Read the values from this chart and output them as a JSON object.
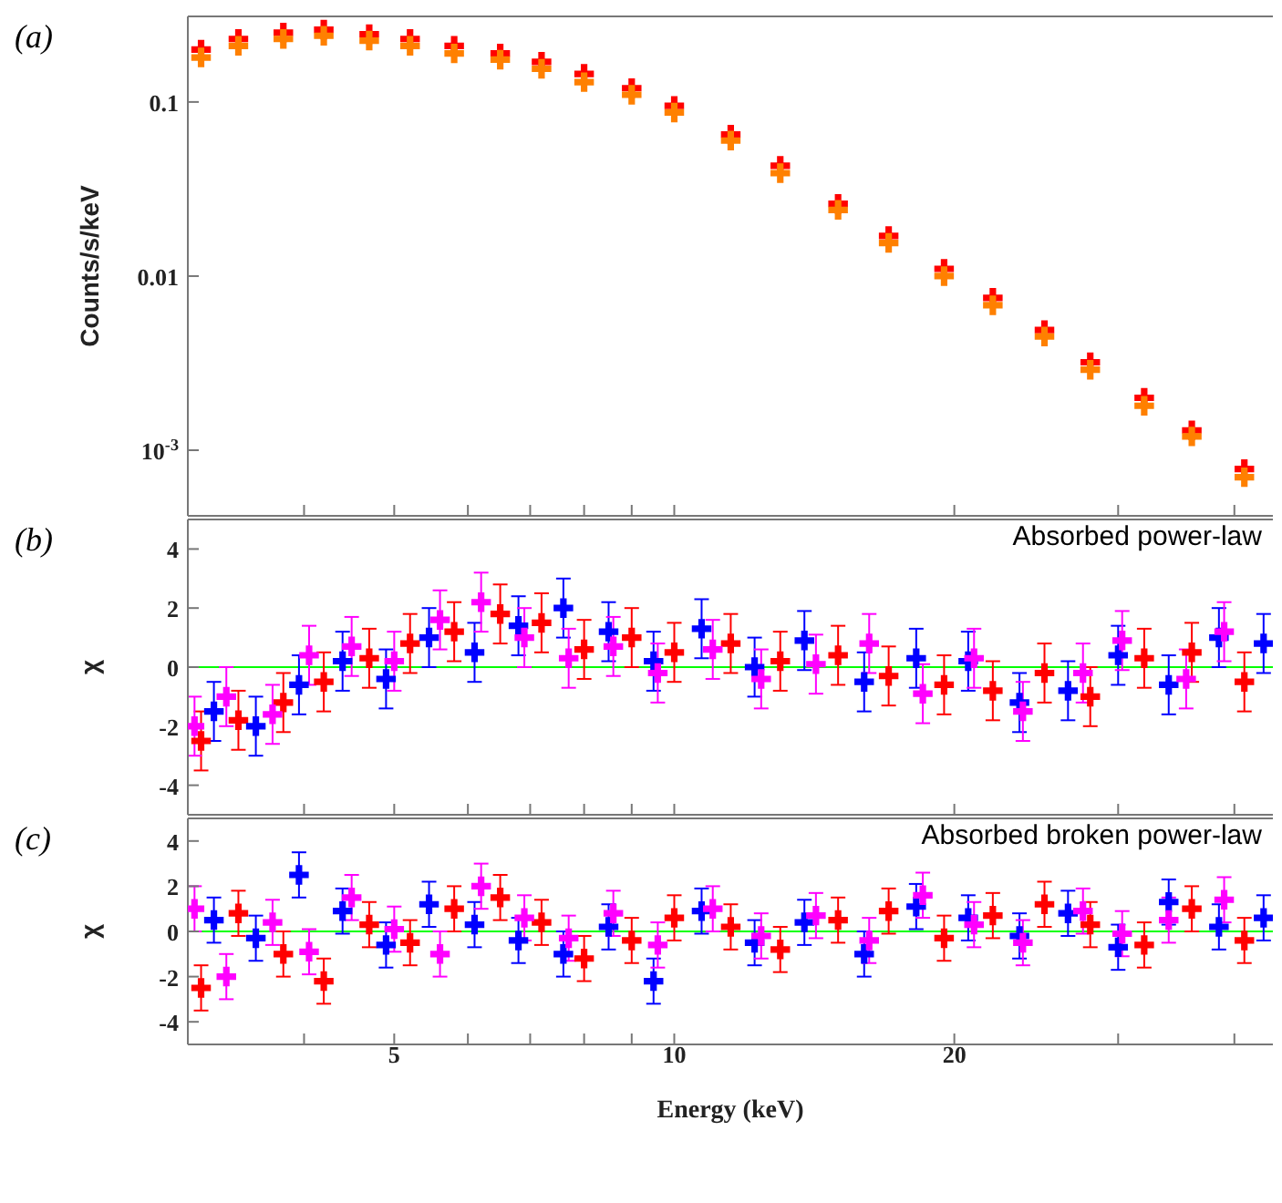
{
  "chart_data": [
    {
      "type": "scatter",
      "xlim": [
        3,
        44
      ],
      "ylim": [
        0.00042,
        0.31
      ],
      "log": "xy",
      "xticks": [
        {
          "value": 4,
          "label": null
        },
        {
          "value": 5,
          "label": null
        },
        {
          "value": 6,
          "label": null
        },
        {
          "value": 7,
          "label": null
        },
        {
          "value": 8,
          "label": null
        },
        {
          "value": 9,
          "label": null
        },
        {
          "value": 10,
          "label": null
        },
        {
          "value": 20,
          "label": null
        },
        {
          "value": 30,
          "label": null
        },
        {
          "value": 40,
          "label": null
        }
      ],
      "yticks": [
        {
          "value": 0.001,
          "label": "10$^{-3}$"
        },
        0.01,
        0.1
      ],
      "tick_labels": "y",
      "ylabel": "Counts/s/keV",
      "annotations": [
        "(a)"
      ],
      "marker": "cross",
      "legend": false,
      "grid": false,
      "x": [
        3.1,
        3.4,
        3.8,
        4.2,
        4.7,
        5.2,
        5.8,
        6.5,
        7.2,
        8,
        9,
        10,
        11.5,
        13,
        15,
        17,
        19.5,
        22,
        25,
        28,
        32,
        36,
        41
      ],
      "series": [
        {
          "color": "#ff0000",
          "values": [
            0.2,
            0.23,
            0.25,
            0.26,
            0.245,
            0.23,
            0.21,
            0.19,
            0.17,
            0.145,
            0.12,
            0.095,
            0.065,
            0.043,
            0.026,
            0.017,
            0.011,
            0.0075,
            0.0049,
            0.0032,
            0.002,
            0.0013,
            0.00078
          ]
        },
        {
          "color": "#ff8000",
          "values": [
            0.18,
            0.21,
            0.23,
            0.24,
            0.225,
            0.21,
            0.19,
            0.175,
            0.155,
            0.13,
            0.11,
            0.087,
            0.06,
            0.039,
            0.024,
            0.0155,
            0.01,
            0.0068,
            0.0045,
            0.0029,
            0.0018,
            0.0012,
            0.0007
          ]
        }
      ]
    },
    {
      "type": "scatter",
      "xlim": [
        3,
        44
      ],
      "ylim": [
        -5,
        5
      ],
      "log": "x",
      "xticks": [
        {
          "value": 4,
          "label": null
        },
        {
          "value": 5,
          "label": null
        },
        {
          "value": 6,
          "label": null
        },
        {
          "value": 7,
          "label": null
        },
        {
          "value": 8,
          "label": null
        },
        {
          "value": 9,
          "label": null
        },
        {
          "value": 10,
          "label": null
        },
        {
          "value": 20,
          "label": null
        },
        {
          "value": 30,
          "label": null
        },
        {
          "value": 40,
          "label": null
        }
      ],
      "yticks": [
        -4,
        -2,
        0,
        2,
        4
      ],
      "tick_labels": "y",
      "ylabel": "χ",
      "annotations": [
        "(b)",
        "Absorbed power-law"
      ],
      "marker": "cross",
      "legend": false,
      "grid": false,
      "ref_lines": [
        {
          "axis": "y",
          "value": 0,
          "color": "#00ff00"
        }
      ],
      "x": [
        3.1,
        3.4,
        3.8,
        4.2,
        4.7,
        5.2,
        5.8,
        6.5,
        7.2,
        8,
        9,
        10,
        11.5,
        13,
        15,
        17,
        19.5,
        22,
        25,
        28,
        32,
        36,
        41
      ],
      "series": [
        {
          "color": "#ff0000",
          "values": [
            -2.5,
            -1.8,
            -1.2,
            -0.5,
            0.3,
            0.8,
            1.2,
            1.8,
            1.5,
            0.6,
            1.0,
            0.5,
            0.8,
            0.2,
            0.4,
            -0.3,
            -0.6,
            -0.8,
            -0.2,
            -1.0,
            0.3,
            0.5,
            -0.5
          ],
          "errors": [
            1,
            1,
            1,
            1,
            1,
            1,
            1,
            1,
            1,
            1,
            1,
            1,
            1,
            1,
            1,
            1,
            1,
            1,
            1,
            1,
            1,
            1,
            1
          ]
        },
        {
          "color": "#0000ff",
          "x": [
            3.2,
            3.55,
            3.95,
            4.4,
            4.9,
            5.45,
            6.1,
            6.8,
            7.6,
            8.5,
            9.5,
            10.7,
            12.2,
            13.8,
            16,
            18.2,
            20.7,
            23.5,
            26.5,
            30,
            34,
            38.5,
            43
          ],
          "values": [
            -1.5,
            -2.0,
            -0.6,
            0.2,
            -0.4,
            1.0,
            0.5,
            1.4,
            2.0,
            1.2,
            0.2,
            1.3,
            0.0,
            0.9,
            -0.5,
            0.3,
            0.2,
            -1.2,
            -0.8,
            0.4,
            -0.6,
            1.0,
            0.8
          ],
          "errors": [
            1,
            1,
            1,
            1,
            1,
            1,
            1,
            1,
            1,
            1,
            1,
            1,
            1,
            1,
            1,
            1,
            1,
            1,
            1,
            1,
            1,
            1,
            1
          ]
        },
        {
          "color": "#ff00ff",
          "x": [
            3.05,
            3.3,
            3.7,
            4.05,
            4.5,
            5,
            5.6,
            6.2,
            6.9,
            7.7,
            8.6,
            9.6,
            11,
            12.4,
            14.2,
            16.2,
            18.5,
            21,
            23.7,
            27.5,
            30.3,
            35.5,
            39
          ],
          "values": [
            -2.0,
            -1.0,
            -1.6,
            0.4,
            0.7,
            0.2,
            1.6,
            2.2,
            1.0,
            0.3,
            0.7,
            -0.2,
            0.6,
            -0.4,
            0.1,
            0.8,
            -0.9,
            0.3,
            -1.5,
            -0.2,
            0.9,
            -0.4,
            1.2
          ],
          "errors": [
            1,
            1,
            1,
            1,
            1,
            1,
            1,
            1,
            1,
            1,
            1,
            1,
            1,
            1,
            1,
            1,
            1,
            1,
            1,
            1,
            1,
            1,
            1
          ]
        }
      ]
    },
    {
      "type": "scatter",
      "xlim": [
        3,
        44
      ],
      "ylim": [
        -5,
        5
      ],
      "log": "x",
      "xticks": [
        {
          "value": 4,
          "label": null
        },
        5,
        {
          "value": 6,
          "label": null
        },
        {
          "value": 7,
          "label": null
        },
        {
          "value": 8,
          "label": null
        },
        {
          "value": 9,
          "label": null
        },
        10,
        20,
        {
          "value": 30,
          "label": null
        },
        {
          "value": 40,
          "label": null
        }
      ],
      "yticks": [
        -4,
        -2,
        0,
        2,
        4
      ],
      "xlabel": "Energy (keV)",
      "ylabel": "χ",
      "annotations": [
        "(c)",
        "Absorbed broken power-law"
      ],
      "marker": "cross",
      "legend": false,
      "grid": false,
      "ref_lines": [
        {
          "axis": "y",
          "value": 0,
          "color": "#00ff00"
        }
      ],
      "x": [
        3.1,
        3.4,
        3.8,
        4.2,
        4.7,
        5.2,
        5.8,
        6.5,
        7.2,
        8,
        9,
        10,
        11.5,
        13,
        15,
        17,
        19.5,
        22,
        25,
        28,
        32,
        36,
        41
      ],
      "series": [
        {
          "color": "#ff0000",
          "values": [
            -2.5,
            0.8,
            -1.0,
            -2.2,
            0.3,
            -0.5,
            1.0,
            1.5,
            0.4,
            -1.2,
            -0.4,
            0.6,
            0.2,
            -0.8,
            0.5,
            0.9,
            -0.3,
            0.7,
            1.2,
            0.3,
            -0.6,
            1.0,
            -0.4
          ],
          "errors": [
            1,
            1,
            1,
            1,
            1,
            1,
            1,
            1,
            1,
            1,
            1,
            1,
            1,
            1,
            1,
            1,
            1,
            1,
            1,
            1,
            1,
            1,
            1
          ]
        },
        {
          "color": "#0000ff",
          "x": [
            3.2,
            3.55,
            3.95,
            4.4,
            4.9,
            5.45,
            6.1,
            6.8,
            7.6,
            8.5,
            9.5,
            10.7,
            12.2,
            13.8,
            16,
            18.2,
            20.7,
            23.5,
            26.5,
            30,
            34,
            38.5,
            43
          ],
          "values": [
            0.5,
            -0.3,
            2.5,
            0.9,
            -0.6,
            1.2,
            0.3,
            -0.4,
            -1.0,
            0.2,
            -2.2,
            0.9,
            -0.5,
            0.4,
            -1.0,
            1.1,
            0.6,
            -0.2,
            0.8,
            -0.7,
            1.3,
            0.2,
            0.6
          ],
          "errors": [
            1,
            1,
            1,
            1,
            1,
            1,
            1,
            1,
            1,
            1,
            1,
            1,
            1,
            1,
            1,
            1,
            1,
            1,
            1,
            1,
            1,
            1,
            1
          ]
        },
        {
          "color": "#ff00ff",
          "x": [
            3.05,
            3.3,
            3.7,
            4.05,
            4.5,
            5,
            5.6,
            6.2,
            6.9,
            7.7,
            8.6,
            9.6,
            11,
            12.4,
            14.2,
            16.2,
            18.5,
            21,
            23.7,
            27.5,
            30.3,
            34,
            39
          ],
          "values": [
            1.0,
            -2.0,
            0.4,
            -0.9,
            1.5,
            0.1,
            -1.0,
            2.0,
            0.6,
            -0.3,
            0.8,
            -0.6,
            1.0,
            -0.2,
            0.7,
            -0.4,
            1.6,
            0.3,
            -0.5,
            0.9,
            -0.1,
            0.5,
            1.4
          ],
          "errors": [
            1,
            1,
            1,
            1,
            1,
            1,
            1,
            1,
            1,
            1,
            1,
            1,
            1,
            1,
            1,
            1,
            1,
            1,
            1,
            1,
            1,
            1,
            1
          ]
        }
      ]
    }
  ]
}
